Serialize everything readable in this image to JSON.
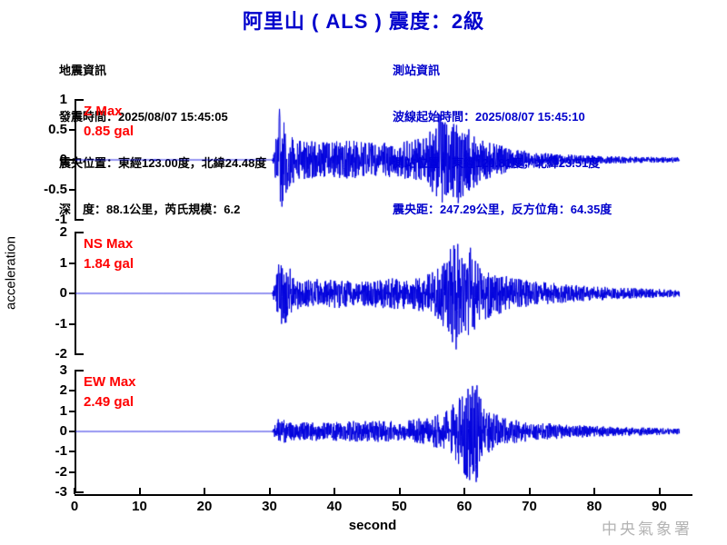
{
  "title": "阿里山 ( ALS )  震度：2級",
  "title_color": "#0000cc",
  "event_info": {
    "heading": "地震資訊",
    "lines": [
      "發震時間：2025/08/07 15:45:05",
      "震央位置：東經123.00度，北緯24.48度",
      "深　度：88.1公里，芮氏規模：6.2"
    ]
  },
  "station_info": {
    "heading": "測站資訊",
    "color": "#0000cc",
    "lines": [
      "波線起始時間：2025/08/07 15:45:10",
      "測站位置：東經120.81度，北緯23.51度",
      "震央距：247.29公里，反方位角：64.35度"
    ]
  },
  "watermark": {
    "text": "中央氣象署",
    "color": "#b3b3b3"
  },
  "chart_data": {
    "type": "line",
    "title": "阿里山 ( ALS )  震度：2級",
    "xlabel": "second",
    "ylabel": "acceleration",
    "x_ticks": [
      0,
      10,
      20,
      30,
      40,
      50,
      60,
      70,
      80,
      90
    ],
    "x_range": [
      0,
      95
    ],
    "trace_color": "#0000dd",
    "label_color": "#ff0000",
    "axis_color": "#000000",
    "grid": false,
    "traces": [
      {
        "name": "Z",
        "label": "Z Max",
        "max_label": "0.85 gal",
        "max_gal": 0.85,
        "unit": "gal",
        "ylim": [
          -1,
          1
        ],
        "y_ticks": [
          1,
          0.5,
          0,
          -0.5,
          -1
        ],
        "onset_s": 30.4,
        "seed": 11,
        "peaks": [
          [
            31.4,
            0.85
          ],
          [
            31.8,
            -0.78
          ],
          [
            56.2,
            0.75
          ],
          [
            58.9,
            -0.72
          ]
        ],
        "envelope": [
          [
            0,
            0
          ],
          [
            12.1,
            0
          ],
          [
            12.2,
            0.03
          ],
          [
            12.4,
            0
          ],
          [
            30.3,
            0
          ],
          [
            30.6,
            0.2
          ],
          [
            31.5,
            0.85
          ],
          [
            32.8,
            0.5
          ],
          [
            34,
            0.33
          ],
          [
            38,
            0.3
          ],
          [
            42,
            0.33
          ],
          [
            46,
            0.28
          ],
          [
            50,
            0.3
          ],
          [
            54,
            0.38
          ],
          [
            56,
            0.78
          ],
          [
            57.5,
            0.6
          ],
          [
            59,
            0.72
          ],
          [
            60.5,
            0.55
          ],
          [
            62,
            0.4
          ],
          [
            64,
            0.3
          ],
          [
            66,
            0.22
          ],
          [
            70,
            0.14
          ],
          [
            74,
            0.1
          ],
          [
            78,
            0.08
          ],
          [
            83,
            0.06
          ],
          [
            88,
            0.05
          ],
          [
            93,
            0.045
          ]
        ]
      },
      {
        "name": "NS",
        "label": "NS Max",
        "max_label": "1.84 gal",
        "max_gal": 1.84,
        "unit": "gal",
        "ylim": [
          -2,
          2
        ],
        "y_ticks": [
          2,
          1,
          0,
          -1,
          -2
        ],
        "onset_s": 30.4,
        "seed": 23,
        "peaks": [
          [
            31.3,
            0.95
          ],
          [
            31.7,
            -1.0
          ],
          [
            58.3,
            1.58
          ],
          [
            58.6,
            -1.84
          ],
          [
            60.8,
            1.5
          ]
        ],
        "envelope": [
          [
            0,
            0
          ],
          [
            30.3,
            0
          ],
          [
            30.6,
            0.3
          ],
          [
            31.3,
            0.95
          ],
          [
            32.6,
            1.0
          ],
          [
            33.6,
            0.6
          ],
          [
            35,
            0.45
          ],
          [
            40,
            0.5
          ],
          [
            44,
            0.42
          ],
          [
            48,
            0.5
          ],
          [
            52,
            0.55
          ],
          [
            55,
            0.7
          ],
          [
            57,
            1.2
          ],
          [
            58.5,
            1.84
          ],
          [
            59.6,
            1.2
          ],
          [
            60.8,
            1.5
          ],
          [
            62,
            0.95
          ],
          [
            64,
            0.8
          ],
          [
            66,
            0.6
          ],
          [
            69,
            0.45
          ],
          [
            73,
            0.35
          ],
          [
            77,
            0.28
          ],
          [
            81,
            0.22
          ],
          [
            85,
            0.18
          ],
          [
            89,
            0.15
          ],
          [
            93,
            0.12
          ]
        ]
      },
      {
        "name": "EW",
        "label": "EW Max",
        "max_label": "2.49 gal",
        "max_gal": 2.49,
        "unit": "gal",
        "ylim": [
          -3,
          3
        ],
        "y_ticks": [
          3,
          2,
          1,
          0,
          -1,
          -2,
          -3
        ],
        "onset_s": 30.4,
        "seed": 37,
        "peaks": [
          [
            31.2,
            0.6
          ],
          [
            61.4,
            1.9
          ],
          [
            61.7,
            -2.49
          ],
          [
            60.4,
            2.1
          ]
        ],
        "envelope": [
          [
            0,
            0
          ],
          [
            30.3,
            0
          ],
          [
            30.6,
            0.35
          ],
          [
            31.5,
            0.6
          ],
          [
            33,
            0.5
          ],
          [
            36,
            0.45
          ],
          [
            40,
            0.5
          ],
          [
            44,
            0.55
          ],
          [
            48,
            0.5
          ],
          [
            52,
            0.6
          ],
          [
            55,
            0.75
          ],
          [
            57,
            1.0
          ],
          [
            58.8,
            1.6
          ],
          [
            60.3,
            2.4
          ],
          [
            61.7,
            2.49
          ],
          [
            62.8,
            1.3
          ],
          [
            64,
            0.95
          ],
          [
            66,
            0.7
          ],
          [
            68,
            0.6
          ],
          [
            71,
            0.45
          ],
          [
            75,
            0.35
          ],
          [
            79,
            0.28
          ],
          [
            83,
            0.24
          ],
          [
            87,
            0.2
          ],
          [
            90,
            0.18
          ],
          [
            93,
            0.14
          ]
        ]
      }
    ]
  }
}
